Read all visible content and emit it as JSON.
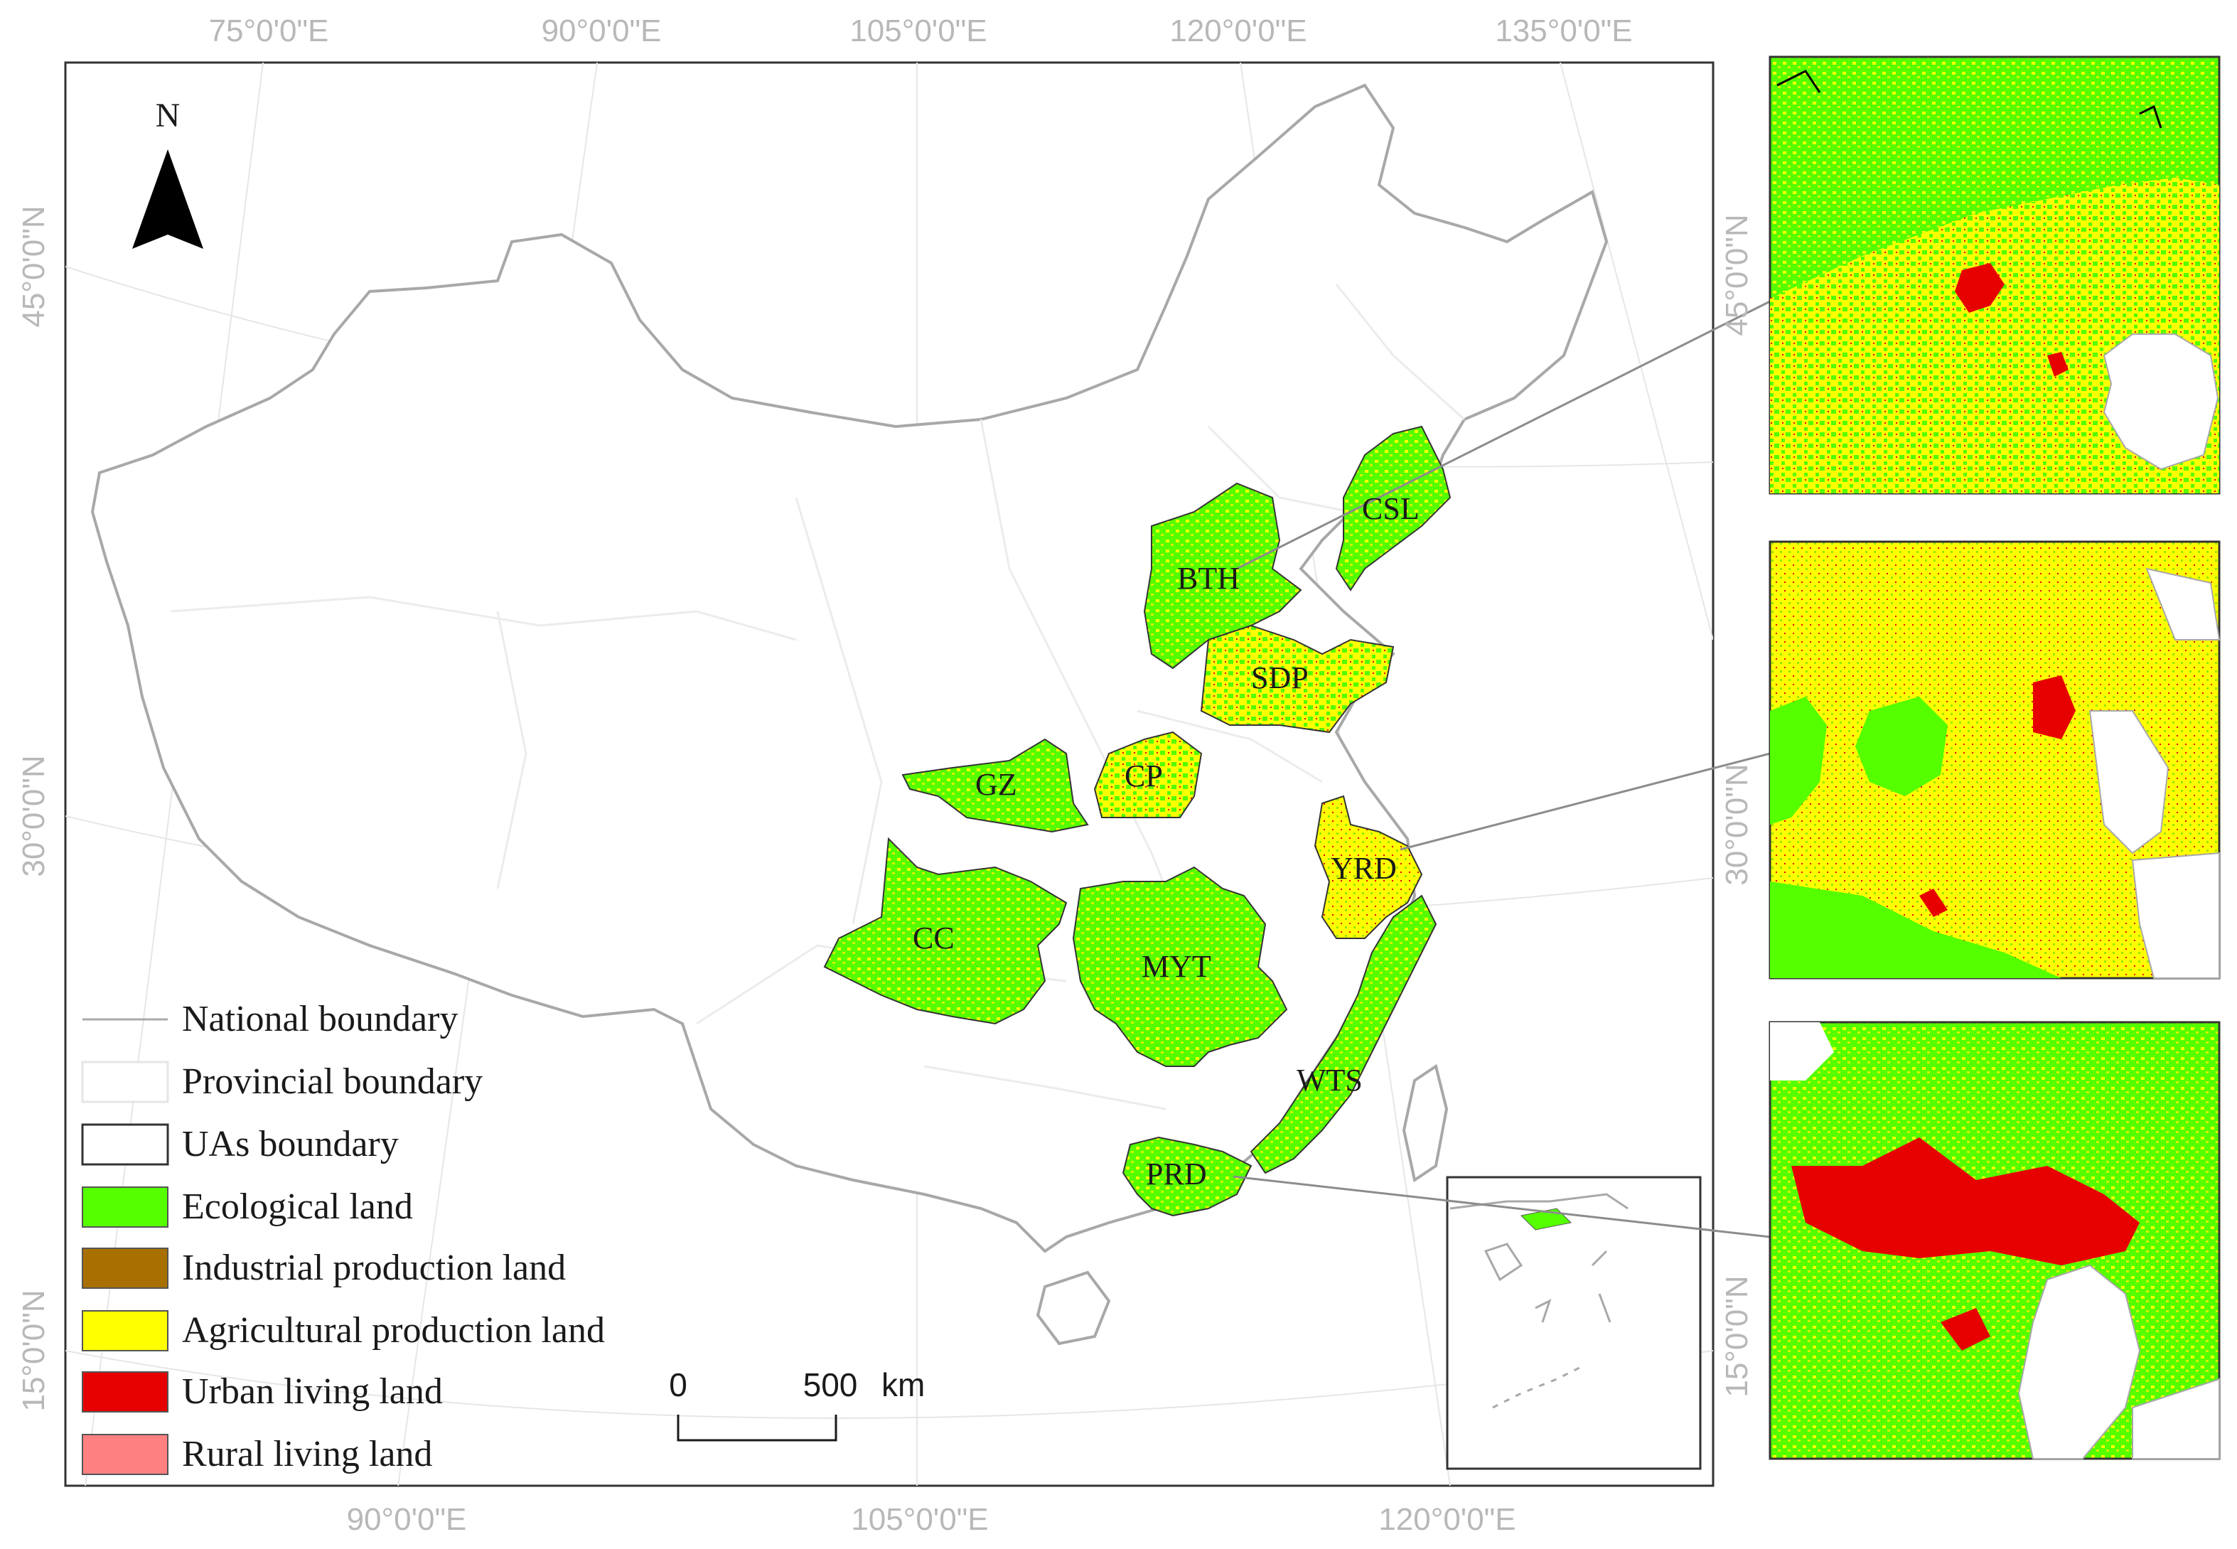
{
  "map": {
    "north_label": "N",
    "top_longitudes": [
      "75°0'0\"E",
      "90°0'0\"E",
      "105°0'0\"E",
      "120°0'0\"E",
      "135°0'0\"E"
    ],
    "bottom_longitudes": [
      "90°0'0\"E",
      "105°0'0\"E",
      "120°0'0\"E"
    ],
    "left_latitudes": [
      "45°0'0\"N",
      "30°0'0\"N",
      "15°0'0\"N"
    ],
    "right_latitudes": [
      "45°0'0\"N",
      "30°0'0\"N",
      "15°0'0\"N"
    ],
    "regions": [
      "CSL",
      "BTH",
      "SDP",
      "GZ",
      "CP",
      "YRD",
      "CC",
      "MYT",
      "WTS",
      "PRD"
    ],
    "scale": {
      "zero": "0",
      "max": "500",
      "unit": "km"
    }
  },
  "legend": {
    "items": [
      {
        "label": "National boundary",
        "kind": "line",
        "color": "#aaaaaa"
      },
      {
        "label": "Provincial boundary",
        "kind": "box",
        "color": "#ffffff",
        "stroke": "#e6e6e6"
      },
      {
        "label": "UAs boundary",
        "kind": "box",
        "color": "#ffffff",
        "stroke": "#333333"
      },
      {
        "label": "Ecological land",
        "kind": "box",
        "color": "#55ff00"
      },
      {
        "label": "Industrial production land",
        "kind": "box",
        "color": "#a87000"
      },
      {
        "label": "Agricultural production land",
        "kind": "box",
        "color": "#ffff00"
      },
      {
        "label": "Urban living land",
        "kind": "box",
        "color": "#e60000"
      },
      {
        "label": "Rural living land",
        "kind": "box",
        "color": "#ff8080"
      }
    ]
  }
}
